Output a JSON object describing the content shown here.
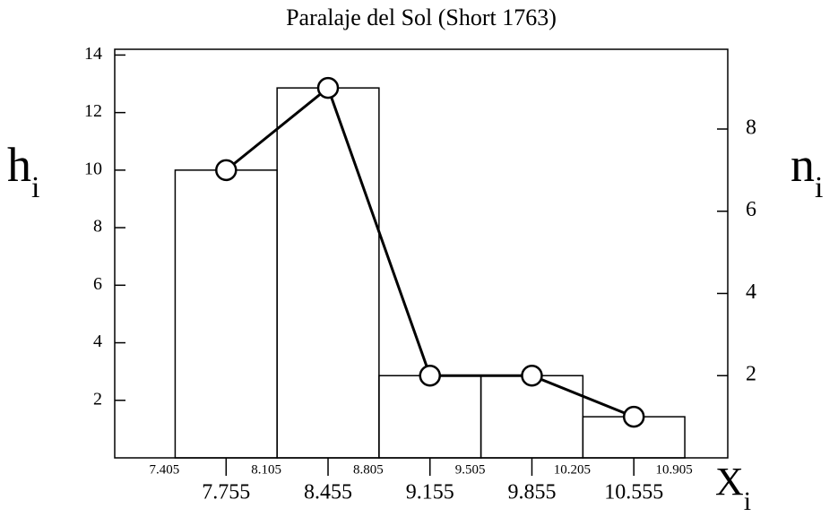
{
  "chart_data": {
    "type": "histogram",
    "title": "Paralaje del Sol (Short 1763)",
    "bins": [
      7.405,
      8.105,
      8.805,
      9.505,
      10.205,
      10.905
    ],
    "values": [
      10,
      12.857,
      2.857,
      2.857,
      1.429
    ],
    "line": {
      "x": [
        7.755,
        8.455,
        9.155,
        9.855,
        10.555
      ],
      "values": [
        7,
        9,
        2,
        2,
        1
      ],
      "axis": "y2"
    },
    "xlim": [
      6.99,
      11.2
    ],
    "xticks": [
      7.755,
      8.455,
      9.155,
      9.855,
      10.555
    ],
    "ylim": [
      0,
      14.2
    ],
    "yticks": [
      2,
      4,
      6,
      8,
      10,
      12,
      14
    ],
    "y2lim": [
      0,
      9.94
    ],
    "y2ticks": [
      2,
      4,
      6,
      8
    ],
    "y_label": "h",
    "y_label_sub": "i",
    "y2_label": "n",
    "y2_label_sub": "i",
    "x_label": "X",
    "x_label_sub": "i",
    "color": "#000000"
  }
}
